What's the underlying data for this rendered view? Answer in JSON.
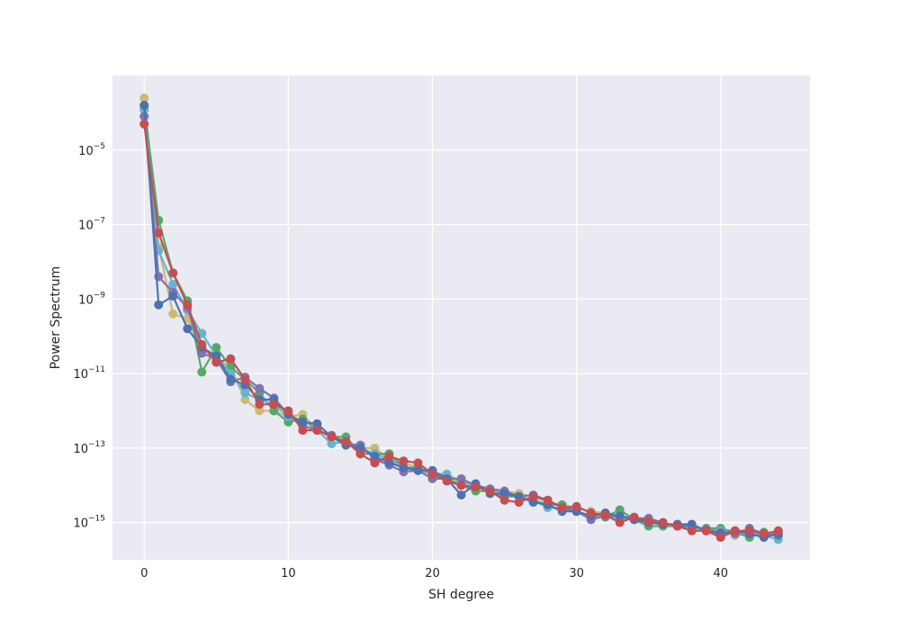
{
  "chart_data": {
    "type": "line",
    "xlabel": "SH degree",
    "ylabel": "Power Spectrum",
    "yscale": "log",
    "xlim": [
      -2.2,
      46.2
    ],
    "ylim": [
      1e-16,
      0.001
    ],
    "x_ticks": [
      {
        "value": 0,
        "label": "0"
      },
      {
        "value": 10,
        "label": "10"
      },
      {
        "value": 20,
        "label": "20"
      },
      {
        "value": 30,
        "label": "30"
      },
      {
        "value": 40,
        "label": "40"
      }
    ],
    "y_ticks": [
      {
        "value": 1e-05,
        "base": "10",
        "exp": "−5"
      },
      {
        "value": 1e-07,
        "base": "10",
        "exp": "−7"
      },
      {
        "value": 1e-09,
        "base": "10",
        "exp": "−9"
      },
      {
        "value": 1e-11,
        "base": "10",
        "exp": "−11"
      },
      {
        "value": 1e-13,
        "base": "10",
        "exp": "−13"
      },
      {
        "value": 1e-15,
        "base": "10",
        "exp": "−15"
      }
    ],
    "grid": true,
    "background": "#eaeaf2",
    "x": [
      0,
      1,
      2,
      3,
      4,
      5,
      6,
      7,
      8,
      9,
      10,
      11,
      12,
      13,
      14,
      15,
      16,
      17,
      18,
      19,
      20,
      21,
      22,
      23,
      24,
      25,
      26,
      27,
      28,
      29,
      30,
      31,
      32,
      33,
      34,
      35,
      36,
      37,
      38,
      39,
      40,
      41,
      42,
      43,
      44
    ],
    "series": [
      {
        "color": "#ccb974",
        "values": [
          0.00025,
          2.5e-08,
          4e-10,
          3e-10,
          5e-11,
          2.5e-11,
          1.5e-11,
          2e-12,
          1e-12,
          1e-12,
          7e-13,
          8e-13,
          3e-13,
          2e-13,
          1.5e-13,
          1e-13,
          1e-13,
          5e-14,
          4e-14,
          3e-14,
          2e-14,
          1.6e-14,
          1.2e-14,
          1e-14,
          8e-15,
          7e-15,
          6e-15,
          5e-15,
          3.5e-15,
          3e-15,
          2.5e-15,
          2e-15,
          1.8e-15,
          1.5e-15,
          1.3e-15,
          1.1e-15,
          9e-16,
          8e-16,
          7e-16,
          6.5e-16,
          6e-16,
          4.5e-16,
          5e-16,
          5e-16,
          4.5e-16
        ]
      },
      {
        "color": "#55a868",
        "values": [
          0.00015,
          1.3e-07,
          5e-09,
          9e-10,
          1.1e-11,
          5e-11,
          1.5e-11,
          7e-12,
          3e-12,
          1e-12,
          5e-13,
          6e-13,
          3e-13,
          2e-13,
          2e-13,
          7e-14,
          7e-14,
          7e-14,
          3e-14,
          3e-14,
          2e-14,
          1.5e-14,
          1e-14,
          7e-15,
          7e-15,
          5e-15,
          5e-15,
          4e-15,
          3e-15,
          3e-15,
          2e-15,
          1.5e-15,
          1.4e-15,
          2.2e-15,
          1.2e-15,
          8e-16,
          8e-16,
          8e-16,
          7e-16,
          7e-16,
          7e-16,
          5.5e-16,
          4e-16,
          5.5e-16,
          5e-16
        ]
      },
      {
        "color": "#64b5cd",
        "values": [
          0.00012,
          2e-08,
          2.5e-09,
          5e-10,
          1.2e-10,
          3e-11,
          1e-11,
          3e-12,
          2e-12,
          1.5e-12,
          7e-13,
          4e-13,
          3e-13,
          1.3e-13,
          1.5e-13,
          1e-13,
          7e-14,
          5e-14,
          3e-14,
          2.5e-14,
          2e-14,
          2e-14,
          1.2e-14,
          1e-14,
          8e-15,
          6e-15,
          5e-15,
          4e-15,
          2.5e-15,
          2.5e-15,
          2e-15,
          1.5e-15,
          1.5e-15,
          1.3e-15,
          1.2e-15,
          1.1e-15,
          9e-16,
          8e-16,
          7e-16,
          6e-16,
          6e-16,
          5.5e-16,
          5e-16,
          4.5e-16,
          3.5e-16
        ]
      },
      {
        "color": "#8172b2",
        "values": [
          8e-05,
          4e-09,
          1.5e-09,
          6e-10,
          3.5e-11,
          2.5e-11,
          6e-12,
          8e-12,
          4e-12,
          2.2e-12,
          8e-13,
          4e-13,
          3e-13,
          2.2e-13,
          1.3e-13,
          1.2e-13,
          5e-14,
          3.5e-14,
          2.3e-14,
          2.5e-14,
          1.5e-14,
          1.5e-14,
          1.5e-14,
          1e-14,
          8e-15,
          7e-15,
          5e-15,
          5.5e-15,
          4e-15,
          2.5e-15,
          2e-15,
          1.2e-15,
          1.5e-15,
          1.5e-15,
          1.3e-15,
          1.3e-15,
          1e-15,
          8e-16,
          8e-16,
          6.5e-16,
          5.5e-16,
          5e-16,
          7e-16,
          5e-16,
          4.5e-16
        ]
      },
      {
        "color": "#4c72b0",
        "values": [
          0.00016,
          7e-10,
          1.2e-09,
          1.6e-10,
          5e-11,
          3e-11,
          7e-12,
          5e-12,
          2e-12,
          2e-12,
          8e-13,
          5e-13,
          4.5e-13,
          2e-13,
          1.2e-13,
          1e-13,
          6e-14,
          4e-14,
          3e-14,
          2.5e-14,
          2.5e-14,
          1.5e-14,
          5.5e-15,
          1.1e-14,
          6e-15,
          6e-15,
          5e-15,
          3.5e-15,
          3e-15,
          2e-15,
          2e-15,
          1.5e-15,
          1.8e-15,
          1.5e-15,
          1.2e-15,
          1e-15,
          9e-16,
          9e-16,
          9e-16,
          6e-16,
          5e-16,
          6e-16,
          5e-16,
          4e-16,
          5e-16
        ]
      },
      {
        "color": "#c44e52",
        "values": [
          5e-05,
          6e-08,
          5e-09,
          7e-10,
          6e-11,
          2e-11,
          2.5e-11,
          7e-12,
          1.5e-12,
          1.5e-12,
          1e-12,
          3e-13,
          3e-13,
          2e-13,
          1.5e-13,
          7e-14,
          4e-14,
          6e-14,
          4.5e-14,
          4e-14,
          2e-14,
          1.3e-14,
          1e-14,
          9e-15,
          7e-15,
          4e-15,
          3.5e-15,
          5e-15,
          4e-15,
          2.5e-15,
          2.7e-15,
          1.8e-15,
          1.6e-15,
          1e-15,
          1.4e-15,
          1.1e-15,
          1e-15,
          8e-16,
          6e-16,
          6e-16,
          4e-16,
          6e-16,
          6e-16,
          5e-16,
          6e-16
        ]
      }
    ]
  }
}
